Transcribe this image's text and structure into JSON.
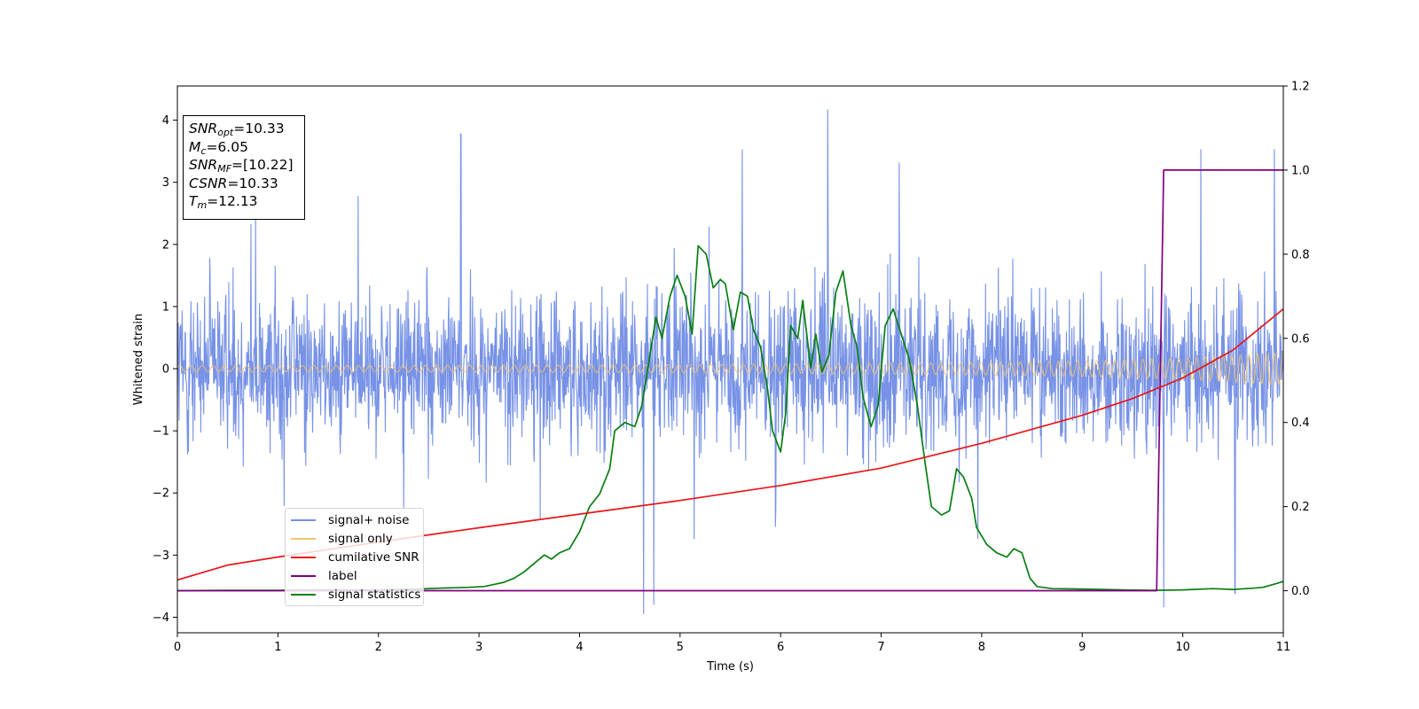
{
  "chart_data": {
    "type": "line",
    "xlabel": "Time (s)",
    "ylabel": "Whitened strain",
    "xlim": [
      0,
      11
    ],
    "ylim": [
      -4.25,
      4.55
    ],
    "y2lim": [
      -0.1,
      1.2
    ],
    "x_ticks": [
      "0",
      "1",
      "2",
      "3",
      "4",
      "5",
      "6",
      "7",
      "8",
      "9",
      "10",
      "11"
    ],
    "y_ticks": [
      "−4",
      "−3",
      "−2",
      "−1",
      "0",
      "1",
      "2",
      "3",
      "4"
    ],
    "y2_ticks": [
      "0.0",
      "0.2",
      "0.4",
      "0.6",
      "0.8",
      "1.0",
      "1.2"
    ],
    "grid": false,
    "legend_position": "lower-left",
    "annotation": {
      "snr_opt": {
        "sym": "SNR",
        "sub": "opt",
        "value": "=10.33"
      },
      "mc": {
        "sym": "M",
        "sub": "c",
        "value": "=6.05"
      },
      "snr_mf": {
        "sym": "SNR",
        "sub": "MF",
        "value": "=[10.22]"
      },
      "csnr": {
        "sym": "CSNR",
        "value": "=10.33"
      },
      "tm": {
        "sym": "T",
        "sub": "m",
        "value": "=12.13"
      }
    },
    "series": [
      {
        "name": "signal+ noise",
        "axis": "left",
        "color": "#4a6ddd",
        "style": "noisy band approx ±1.3 (spikes to about ±3.8) around signal",
        "notable_spikes": [
          [
            2.82,
            3.78
          ],
          [
            4.74,
            -3.8
          ],
          [
            5.62,
            3.53
          ],
          [
            6.47,
            4.17
          ],
          [
            7.18,
            3.32
          ],
          [
            9.81,
            -3.84
          ],
          [
            10.18,
            3.53
          ],
          [
            10.52,
            -3.62
          ],
          [
            10.91,
            3.53
          ]
        ]
      },
      {
        "name": "signal only",
        "axis": "left",
        "color": "#f6c36a",
        "x": [
          0,
          1,
          2,
          3,
          4,
          5,
          6,
          7,
          8,
          9,
          10,
          11
        ],
        "amplitude": [
          0.05,
          0.05,
          0.05,
          0.055,
          0.06,
          0.065,
          0.075,
          0.085,
          0.1,
          0.125,
          0.17,
          0.26
        ]
      },
      {
        "name": "cumilative SNR",
        "axis": "left",
        "color": "#e8161a",
        "x": [
          0,
          0.5,
          1,
          2,
          3,
          4,
          5,
          6,
          7,
          8,
          9,
          9.5,
          10,
          10.5,
          11
        ],
        "y": [
          -3.4,
          -3.16,
          -3.03,
          -2.79,
          -2.56,
          -2.34,
          -2.12,
          -1.88,
          -1.6,
          -1.2,
          -0.75,
          -0.48,
          -0.15,
          0.3,
          0.96
        ]
      },
      {
        "name": "label",
        "axis": "right",
        "color": "#800080",
        "x": [
          0,
          9.74,
          9.81,
          11
        ],
        "y": [
          0,
          0,
          1,
          1
        ]
      },
      {
        "name": "signal statistics",
        "axis": "right",
        "color": "#087f10",
        "x": [
          0,
          0.5,
          1,
          1.5,
          2,
          2.4,
          2.6,
          2.75,
          2.9,
          3.05,
          3.15,
          3.25,
          3.35,
          3.45,
          3.55,
          3.65,
          3.72,
          3.8,
          3.9,
          4.0,
          4.1,
          4.2,
          4.3,
          4.35,
          4.45,
          4.55,
          4.62,
          4.7,
          4.76,
          4.82,
          4.9,
          4.97,
          5.05,
          5.12,
          5.18,
          5.26,
          5.33,
          5.4,
          5.45,
          5.53,
          5.6,
          5.67,
          5.73,
          5.8,
          5.87,
          5.92,
          6.0,
          6.05,
          6.1,
          6.17,
          6.22,
          6.3,
          6.35,
          6.41,
          6.48,
          6.55,
          6.62,
          6.7,
          6.76,
          6.82,
          6.9,
          6.97,
          7.04,
          7.12,
          7.2,
          7.28,
          7.36,
          7.44,
          7.5,
          7.6,
          7.68,
          7.75,
          7.82,
          7.9,
          7.95,
          8.05,
          8.15,
          8.25,
          8.32,
          8.4,
          8.48,
          8.55,
          8.7,
          9.0,
          9.4,
          9.7,
          10.0,
          10.3,
          10.5,
          10.7,
          10.8,
          10.9,
          11.0
        ],
        "y": [
          0.0,
          0.001,
          0.001,
          0.002,
          0.002,
          0.004,
          0.006,
          0.007,
          0.008,
          0.01,
          0.015,
          0.02,
          0.03,
          0.045,
          0.065,
          0.085,
          0.075,
          0.09,
          0.1,
          0.14,
          0.2,
          0.23,
          0.29,
          0.38,
          0.4,
          0.39,
          0.44,
          0.56,
          0.65,
          0.6,
          0.7,
          0.75,
          0.7,
          0.61,
          0.82,
          0.8,
          0.72,
          0.74,
          0.73,
          0.62,
          0.71,
          0.7,
          0.62,
          0.58,
          0.48,
          0.38,
          0.33,
          0.42,
          0.63,
          0.6,
          0.69,
          0.53,
          0.61,
          0.52,
          0.56,
          0.71,
          0.76,
          0.63,
          0.58,
          0.46,
          0.39,
          0.44,
          0.63,
          0.67,
          0.61,
          0.55,
          0.44,
          0.3,
          0.2,
          0.18,
          0.19,
          0.29,
          0.27,
          0.22,
          0.15,
          0.11,
          0.09,
          0.08,
          0.1,
          0.09,
          0.03,
          0.01,
          0.005,
          0.004,
          0.002,
          0.001,
          0.002,
          0.005,
          0.003,
          0.006,
          0.008,
          0.015,
          0.022
        ]
      }
    ]
  }
}
